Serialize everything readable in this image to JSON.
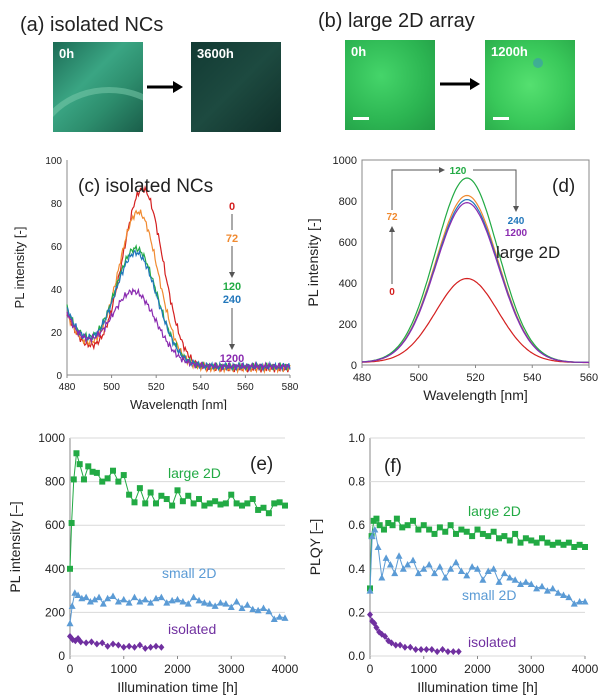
{
  "panel_a": {
    "title": "(a) isolated NCs",
    "before_label": "0h",
    "after_label": "3600h"
  },
  "panel_b": {
    "title": "(b) large 2D array",
    "before_label": "0h",
    "after_label": "1200h"
  },
  "colors": {
    "t0": "#d42020",
    "t72": "#f08a30",
    "t120": "#22aa44",
    "t240": "#2277bb",
    "t1200": "#8a2bb0",
    "large": "#22aa44",
    "small": "#5b9bd5",
    "isolated": "#7030a0"
  },
  "chart_data": [
    {
      "id": "c",
      "type": "line",
      "panel_label": "(c) isolated NCs",
      "xlabel": "Wavelength [nm]",
      "ylabel": "PL intensity [-]",
      "xlim": [
        480,
        580
      ],
      "ylim": [
        0,
        100
      ],
      "xticks": [
        "480",
        "500",
        "520",
        "540",
        "560",
        "580"
      ],
      "yticks": [
        "0",
        "20",
        "40",
        "60",
        "80",
        "100"
      ],
      "time_labels": [
        "0",
        "72",
        "120",
        "240",
        "1200"
      ],
      "series": [
        {
          "name": "0",
          "color_key": "t0",
          "peak_x": 514,
          "peak": 83,
          "width": 9,
          "bg_left": 26,
          "bg_right": 3
        },
        {
          "name": "72",
          "color_key": "t72",
          "peak_x": 512,
          "peak": 72,
          "width": 9,
          "bg_left": 26,
          "bg_right": 3
        },
        {
          "name": "120",
          "color_key": "t120",
          "peak_x": 511,
          "peak": 54,
          "width": 9.5,
          "bg_left": 27,
          "bg_right": 4
        },
        {
          "name": "240",
          "color_key": "t240",
          "peak_x": 511,
          "peak": 52,
          "width": 9.5,
          "bg_left": 27,
          "bg_right": 4
        },
        {
          "name": "1200",
          "color_key": "t1200",
          "peak_x": 510,
          "peak": 34,
          "width": 10,
          "bg_left": 25,
          "bg_right": 4
        }
      ]
    },
    {
      "id": "d",
      "type": "line",
      "panel_label": "(d)",
      "annotation": "large 2D",
      "xlabel": "Wavelength [nm]",
      "ylabel": "PL intensity [-]",
      "xlim": [
        480,
        560
      ],
      "ylim": [
        0,
        1000
      ],
      "xticks": [
        "480",
        "500",
        "520",
        "540",
        "560"
      ],
      "yticks": [
        "0",
        "200",
        "400",
        "600",
        "800",
        "1000"
      ],
      "time_labels": [
        "0",
        "72",
        "120",
        "240",
        "1200"
      ],
      "series": [
        {
          "name": "0",
          "color_key": "t0",
          "peak_x": 517,
          "peak": 410,
          "width": 11
        },
        {
          "name": "72",
          "color_key": "t72",
          "peak_x": 517,
          "peak": 815,
          "width": 11
        },
        {
          "name": "120",
          "color_key": "t120",
          "peak_x": 517,
          "peak": 900,
          "width": 11
        },
        {
          "name": "240",
          "color_key": "t240",
          "peak_x": 517,
          "peak": 795,
          "width": 11
        },
        {
          "name": "1200",
          "color_key": "t1200",
          "peak_x": 517,
          "peak": 780,
          "width": 11
        }
      ]
    },
    {
      "id": "e",
      "type": "line",
      "panel_label": "(e)",
      "xlabel": "Illumination time [h]",
      "ylabel": "PL intensity [–]",
      "xlim": [
        0,
        4000
      ],
      "ylim": [
        0,
        1000
      ],
      "xticks": [
        "0",
        "1000",
        "2000",
        "3000",
        "4000"
      ],
      "yticks": [
        "0",
        "200",
        "400",
        "600",
        "800",
        "1000"
      ],
      "series": [
        {
          "name": "large 2D",
          "color_key": "large",
          "marker": "square",
          "x": [
            0,
            30,
            70,
            120,
            180,
            260,
            340,
            420,
            500,
            600,
            700,
            800,
            900,
            1000,
            1100,
            1200,
            1300,
            1400,
            1500,
            1600,
            1700,
            1800,
            1900,
            2000,
            2100,
            2200,
            2300,
            2400,
            2500,
            2600,
            2700,
            2800,
            2900,
            3000,
            3100,
            3200,
            3300,
            3400,
            3500,
            3600,
            3700,
            3800,
            3900,
            4000
          ],
          "y": [
            400,
            610,
            810,
            930,
            880,
            810,
            870,
            845,
            840,
            800,
            815,
            850,
            800,
            830,
            740,
            705,
            770,
            700,
            750,
            700,
            735,
            720,
            690,
            760,
            710,
            735,
            700,
            720,
            690,
            700,
            710,
            695,
            700,
            740,
            700,
            690,
            700,
            720,
            670,
            680,
            655,
            700,
            705,
            690
          ]
        },
        {
          "name": "small 2D",
          "color_key": "small",
          "marker": "triangle",
          "x": [
            0,
            40,
            90,
            150,
            220,
            300,
            380,
            460,
            540,
            620,
            700,
            800,
            900,
            1000,
            1100,
            1200,
            1300,
            1400,
            1500,
            1600,
            1700,
            1800,
            1900,
            2000,
            2100,
            2200,
            2300,
            2400,
            2500,
            2600,
            2700,
            2800,
            2900,
            3000,
            3100,
            3200,
            3300,
            3400,
            3500,
            3600,
            3700,
            3800,
            3900,
            4000
          ],
          "y": [
            150,
            230,
            290,
            280,
            265,
            270,
            250,
            260,
            270,
            240,
            265,
            275,
            250,
            260,
            245,
            270,
            250,
            260,
            245,
            265,
            270,
            245,
            255,
            260,
            250,
            240,
            270,
            255,
            245,
            240,
            230,
            245,
            240,
            225,
            250,
            220,
            235,
            215,
            210,
            220,
            205,
            170,
            180,
            175
          ]
        },
        {
          "name": "isolated",
          "color_key": "isolated",
          "marker": "diamond",
          "x": [
            0,
            50,
            100,
            150,
            200,
            300,
            400,
            500,
            600,
            700,
            800,
            900,
            1000,
            1100,
            1200,
            1300,
            1400,
            1500,
            1600,
            1700
          ],
          "y": [
            90,
            75,
            70,
            80,
            65,
            60,
            65,
            55,
            60,
            45,
            55,
            50,
            40,
            45,
            40,
            50,
            35,
            40,
            45,
            40
          ]
        }
      ],
      "series_labels": [
        "large 2D",
        "small 2D",
        "isolated"
      ]
    },
    {
      "id": "f",
      "type": "line",
      "panel_label": "(f)",
      "xlabel": "Illumination time [h]",
      "ylabel": "PLQY [–]",
      "xlim": [
        0,
        4000
      ],
      "ylim": [
        0,
        1.0
      ],
      "xticks": [
        "0",
        "1000",
        "2000",
        "3000",
        "4000"
      ],
      "yticks": [
        "0.0",
        "0.2",
        "0.4",
        "0.6",
        "0.8",
        "1.0"
      ],
      "series": [
        {
          "name": "large 2D",
          "color_key": "large",
          "marker": "square",
          "x": [
            0,
            30,
            70,
            120,
            180,
            260,
            340,
            420,
            500,
            600,
            700,
            800,
            900,
            1000,
            1100,
            1200,
            1300,
            1400,
            1500,
            1600,
            1700,
            1800,
            1900,
            2000,
            2100,
            2200,
            2300,
            2400,
            2500,
            2600,
            2700,
            2800,
            2900,
            3000,
            3100,
            3200,
            3300,
            3400,
            3500,
            3600,
            3700,
            3800,
            3900,
            4000
          ],
          "y": [
            0.31,
            0.55,
            0.62,
            0.63,
            0.6,
            0.58,
            0.61,
            0.6,
            0.63,
            0.59,
            0.6,
            0.62,
            0.58,
            0.6,
            0.58,
            0.56,
            0.59,
            0.57,
            0.6,
            0.56,
            0.58,
            0.57,
            0.55,
            0.58,
            0.56,
            0.55,
            0.57,
            0.54,
            0.55,
            0.53,
            0.56,
            0.52,
            0.54,
            0.53,
            0.52,
            0.54,
            0.52,
            0.51,
            0.52,
            0.51,
            0.52,
            0.5,
            0.51,
            0.5
          ]
        },
        {
          "name": "small 2D",
          "color_key": "small",
          "marker": "triangle",
          "x": [
            0,
            40,
            90,
            150,
            220,
            300,
            380,
            460,
            540,
            620,
            700,
            800,
            900,
            1000,
            1100,
            1200,
            1300,
            1400,
            1500,
            1600,
            1700,
            1800,
            1900,
            2000,
            2100,
            2200,
            2300,
            2400,
            2500,
            2600,
            2700,
            2800,
            2900,
            3000,
            3100,
            3200,
            3300,
            3400,
            3500,
            3600,
            3700,
            3800,
            3900,
            4000
          ],
          "y": [
            0.3,
            0.55,
            0.58,
            0.5,
            0.36,
            0.45,
            0.42,
            0.38,
            0.46,
            0.4,
            0.42,
            0.44,
            0.38,
            0.4,
            0.42,
            0.38,
            0.41,
            0.36,
            0.4,
            0.43,
            0.39,
            0.37,
            0.41,
            0.4,
            0.35,
            0.39,
            0.4,
            0.34,
            0.38,
            0.36,
            0.35,
            0.33,
            0.34,
            0.33,
            0.31,
            0.32,
            0.3,
            0.31,
            0.29,
            0.28,
            0.27,
            0.24,
            0.25,
            0.25
          ]
        },
        {
          "name": "isolated",
          "color_key": "isolated",
          "marker": "diamond",
          "x": [
            0,
            40,
            80,
            120,
            170,
            220,
            280,
            340,
            400,
            480,
            560,
            650,
            750,
            850,
            950,
            1050,
            1150,
            1250,
            1350,
            1450,
            1550,
            1650
          ],
          "y": [
            0.19,
            0.16,
            0.15,
            0.13,
            0.11,
            0.1,
            0.09,
            0.07,
            0.06,
            0.05,
            0.05,
            0.04,
            0.04,
            0.03,
            0.03,
            0.03,
            0.03,
            0.02,
            0.03,
            0.02,
            0.02,
            0.02
          ]
        }
      ],
      "series_labels": [
        "large 2D",
        "small 2D",
        "isolated"
      ]
    }
  ]
}
